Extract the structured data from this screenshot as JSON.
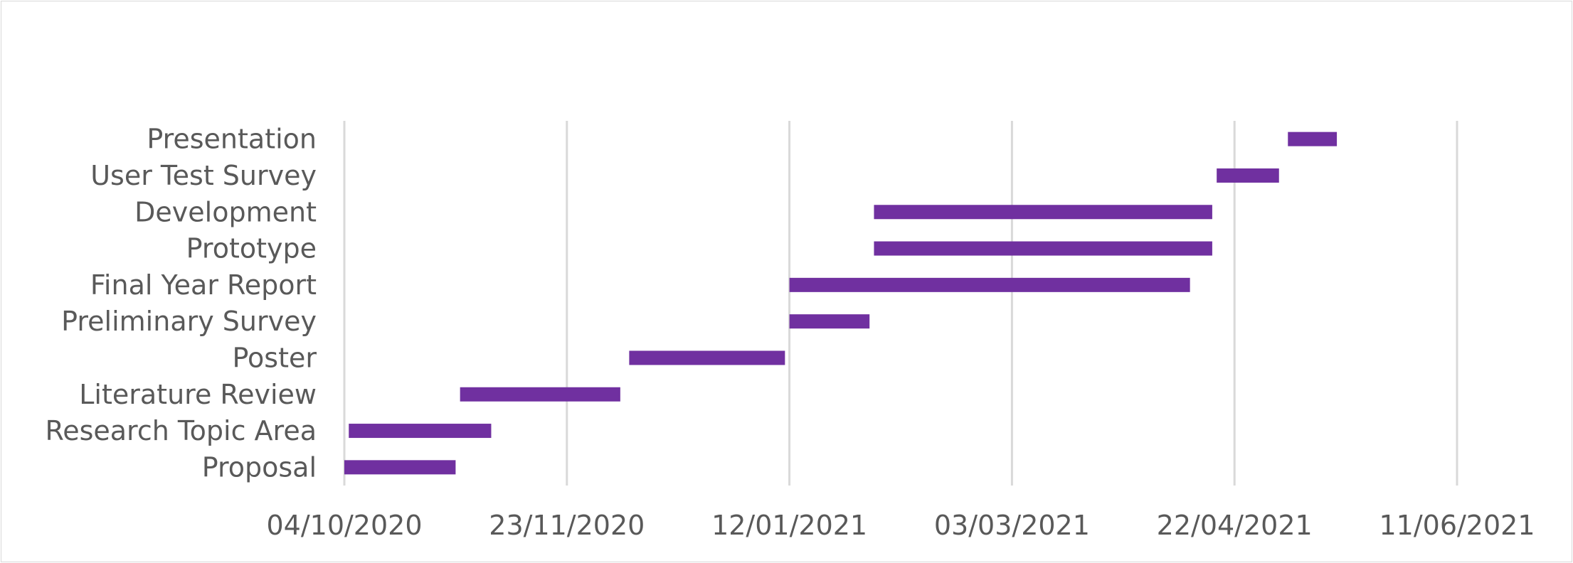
{
  "chart_data": {
    "type": "bar",
    "orientation": "horizontal",
    "subtype": "gantt",
    "title": "",
    "xlabel": "",
    "ylabel": "",
    "x_ticks": [
      "04/10/2020",
      "23/11/2020",
      "12/01/2021",
      "03/03/2021",
      "22/04/2021",
      "11/06/2021"
    ],
    "xlim": [
      "2020-10-04",
      "2021-06-11"
    ],
    "grid": true,
    "legend": "none",
    "color": "#7030a0",
    "tasks": [
      {
        "label": "Proposal",
        "start": "2020-10-04",
        "end": "2020-10-29"
      },
      {
        "label": "Research Topic Area",
        "start": "2020-10-05",
        "end": "2020-11-06"
      },
      {
        "label": "Literature Review",
        "start": "2020-10-30",
        "end": "2020-12-05"
      },
      {
        "label": "Poster",
        "start": "2020-12-07",
        "end": "2021-01-11"
      },
      {
        "label": "Preliminary Survey",
        "start": "2021-01-12",
        "end": "2021-01-30"
      },
      {
        "label": "Final Year Report",
        "start": "2021-01-12",
        "end": "2021-04-12"
      },
      {
        "label": "Prototype",
        "start": "2021-01-31",
        "end": "2021-04-17"
      },
      {
        "label": "Development ",
        "start": "2021-01-31",
        "end": "2021-04-17"
      },
      {
        "label": "User Test Survey ",
        "start": "2021-04-18",
        "end": "2021-05-02"
      },
      {
        "label": "Presentation",
        "start": "2021-05-04",
        "end": "2021-05-15"
      }
    ]
  }
}
